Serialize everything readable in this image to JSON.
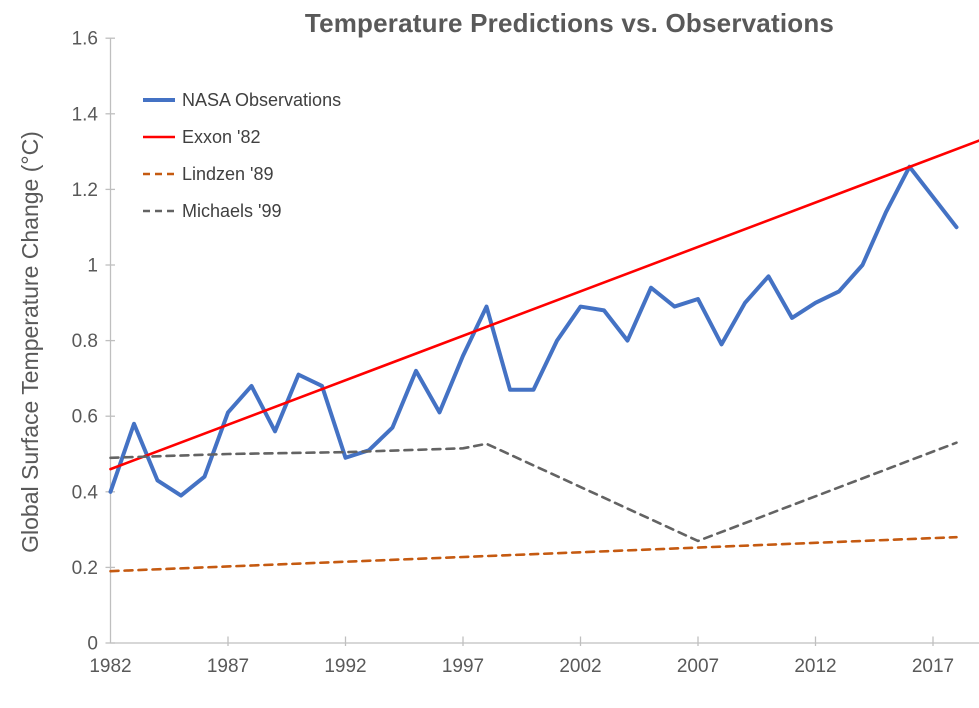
{
  "chart_data": {
    "type": "line",
    "title": "Temperature Predictions vs. Observations",
    "xlabel": "",
    "ylabel": "Global Surface Temperature Change (°C)",
    "xlim": [
      1982,
      2019
    ],
    "ylim": [
      0,
      1.6
    ],
    "grid": false,
    "legend_position": "upper-left-inside",
    "x_ticks": [
      1982,
      1987,
      1992,
      1997,
      2002,
      2007,
      2012,
      2017
    ],
    "y_ticks": [
      0,
      0.2,
      0.4,
      0.6,
      0.8,
      1,
      1.2,
      1.4,
      1.6
    ],
    "y_tick_labels": [
      "0",
      "0.2",
      "0.4",
      "0.6",
      "0.8",
      "1",
      "1.2",
      "1.4",
      "1.6"
    ],
    "series": [
      {
        "name": "NASA Observations",
        "color": "#4472C4",
        "style": "solid",
        "width": 4,
        "x": [
          1982,
          1983,
          1984,
          1985,
          1986,
          1987,
          1988,
          1989,
          1990,
          1991,
          1992,
          1993,
          1994,
          1995,
          1996,
          1997,
          1998,
          1999,
          2000,
          2001,
          2002,
          2003,
          2004,
          2005,
          2006,
          2007,
          2008,
          2009,
          2010,
          2011,
          2012,
          2013,
          2014,
          2015,
          2016,
          2017,
          2018
        ],
        "values": [
          0.4,
          0.58,
          0.43,
          0.39,
          0.44,
          0.61,
          0.68,
          0.56,
          0.71,
          0.68,
          0.49,
          0.51,
          0.57,
          0.72,
          0.61,
          0.76,
          0.89,
          0.67,
          0.67,
          0.8,
          0.89,
          0.88,
          0.8,
          0.94,
          0.89,
          0.91,
          0.79,
          0.9,
          0.97,
          0.86,
          0.9,
          0.93,
          1.0,
          1.14,
          1.26,
          1.18,
          1.1
        ]
      },
      {
        "name": "Exxon '82",
        "color": "#FF0000",
        "style": "solid",
        "width": 2.6,
        "x": [
          1982,
          2019
        ],
        "values": [
          0.46,
          1.33
        ]
      },
      {
        "name": "Lindzen '89",
        "color": "#C55A11",
        "style": "dashed",
        "width": 2.6,
        "x": [
          1982,
          2018
        ],
        "values": [
          0.19,
          0.28
        ]
      },
      {
        "name": "Michaels '99",
        "color": "#636363",
        "style": "dashed",
        "width": 2.6,
        "x": [
          1982,
          1987,
          1992,
          1997,
          1998,
          2007,
          2018
        ],
        "values": [
          0.49,
          0.5,
          0.505,
          0.515,
          0.527,
          0.27,
          0.53
        ]
      }
    ]
  },
  "axes": {
    "line_color": "#BFBFBF",
    "tick_label_color": "#595959",
    "legend_text_color": "#404040"
  }
}
